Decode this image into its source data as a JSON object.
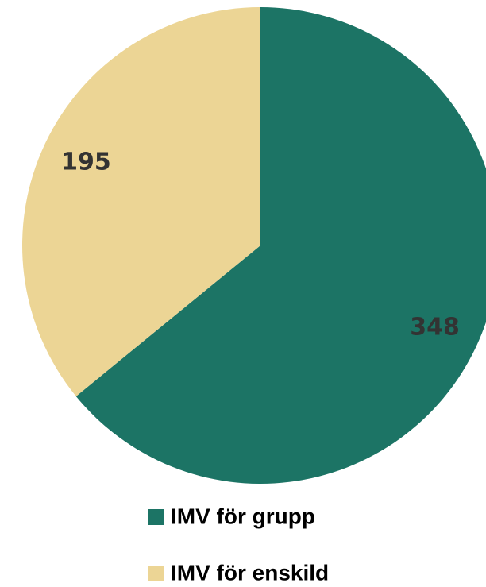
{
  "chart_data": {
    "type": "pie",
    "categories": [
      "IMV för grupp",
      "IMV för enskild"
    ],
    "values": [
      348,
      195
    ],
    "colors": [
      "#1c7465",
      "#ecd595"
    ],
    "legend": "bottom"
  }
}
